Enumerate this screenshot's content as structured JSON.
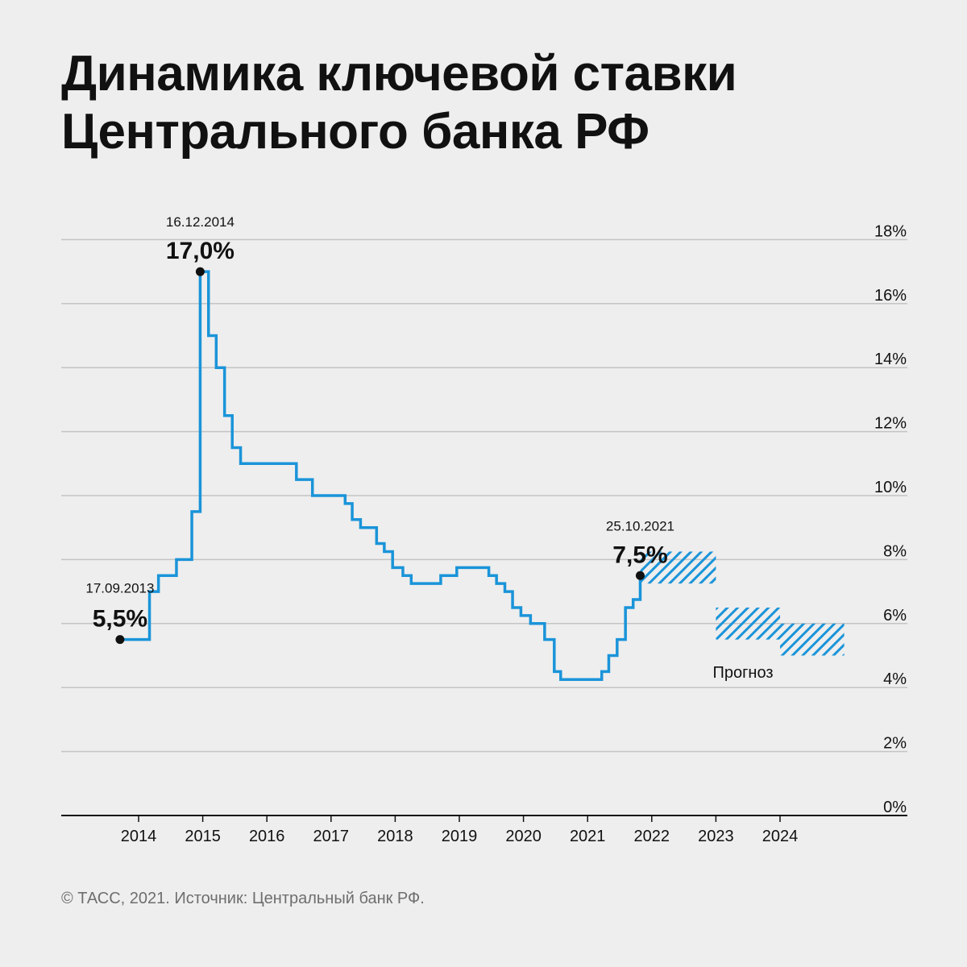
{
  "title": {
    "line1": "Динамика ключевой ставки",
    "line2": "Центрального банка РФ"
  },
  "source": "© ТАСС, 2021. Источник: Центральный банк РФ.",
  "colors": {
    "background": "#eeeeee",
    "line": "#1a94d9",
    "grid": "#c4c4c4",
    "axis": "#111111",
    "text": "#111111",
    "source_text": "#6e6e6e"
  },
  "chart_data": {
    "type": "line",
    "step": true,
    "y_axis": {
      "position": "right",
      "min": 0,
      "max": 18,
      "step": 2,
      "unit": "%"
    },
    "y_tick_labels": [
      "0%",
      "2%",
      "4%",
      "6%",
      "8%",
      "10%",
      "12%",
      "14%",
      "16%",
      "18%"
    ],
    "x_axis": {
      "min": 2013.0,
      "max": 2025.1
    },
    "x_tick_labels": [
      "2014",
      "2015",
      "2016",
      "2017",
      "2018",
      "2019",
      "2020",
      "2021",
      "2022",
      "2023",
      "2024"
    ],
    "grid": true,
    "series": [
      {
        "values": [
          [
            2013.71,
            5.5
          ],
          [
            2014.17,
            7.0
          ],
          [
            2014.31,
            7.5
          ],
          [
            2014.59,
            8.0
          ],
          [
            2014.83,
            9.5
          ],
          [
            2014.96,
            17.0
          ],
          [
            2015.09,
            15.0
          ],
          [
            2015.21,
            14.0
          ],
          [
            2015.34,
            12.5
          ],
          [
            2015.46,
            11.5
          ],
          [
            2015.59,
            11.0
          ],
          [
            2016.46,
            10.5
          ],
          [
            2016.71,
            10.0
          ],
          [
            2017.22,
            9.75
          ],
          [
            2017.33,
            9.25
          ],
          [
            2017.46,
            9.0
          ],
          [
            2017.71,
            8.5
          ],
          [
            2017.83,
            8.25
          ],
          [
            2017.96,
            7.75
          ],
          [
            2018.12,
            7.5
          ],
          [
            2018.25,
            7.25
          ],
          [
            2018.71,
            7.5
          ],
          [
            2018.96,
            7.75
          ],
          [
            2019.46,
            7.5
          ],
          [
            2019.58,
            7.25
          ],
          [
            2019.71,
            7.0
          ],
          [
            2019.83,
            6.5
          ],
          [
            2019.96,
            6.25
          ],
          [
            2020.11,
            6.0
          ],
          [
            2020.33,
            5.5
          ],
          [
            2020.48,
            4.5
          ],
          [
            2020.58,
            4.25
          ],
          [
            2021.22,
            4.5
          ],
          [
            2021.33,
            5.0
          ],
          [
            2021.46,
            5.5
          ],
          [
            2021.59,
            6.5
          ],
          [
            2021.71,
            6.75
          ],
          [
            2021.82,
            7.5
          ]
        ]
      }
    ],
    "start_point": {
      "x": 2013.71,
      "y": 5.5
    },
    "end_x": 2021.82,
    "forecast_label": "Прогноз",
    "forecast_ranges": [
      {
        "x_start": 2021.82,
        "x_end": 2023.0,
        "y_low": 7.25,
        "y_high": 8.25
      },
      {
        "x_start": 2023.0,
        "x_end": 2024.0,
        "y_low": 5.5,
        "y_high": 6.5
      },
      {
        "x_start": 2024.0,
        "x_end": 2025.0,
        "y_low": 5.0,
        "y_high": 6.0
      }
    ],
    "annotations": [
      {
        "date": "17.09.2013",
        "value": "5,5%",
        "x": 2013.71,
        "y": 5.5
      },
      {
        "date": "16.12.2014",
        "value": "17,0%",
        "x": 2014.96,
        "y": 17.0
      },
      {
        "date": "25.10.2021",
        "value": "7,5%",
        "x": 2021.82,
        "y": 7.5
      }
    ]
  }
}
